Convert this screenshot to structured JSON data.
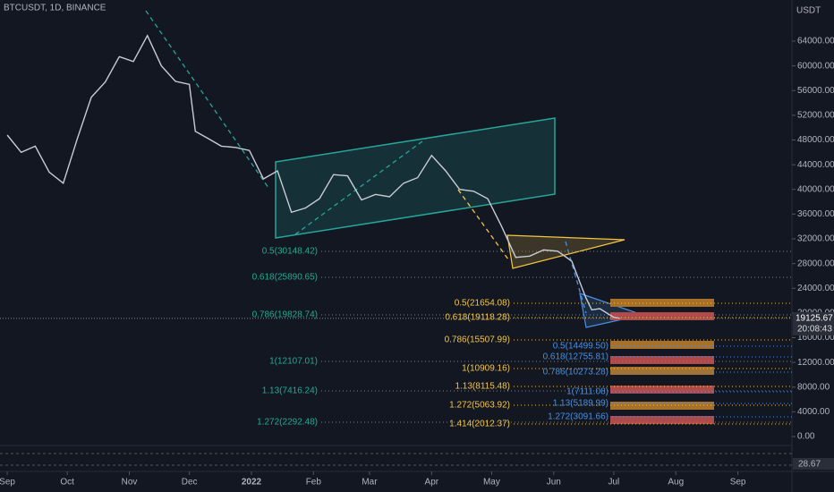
{
  "chart_data": {
    "type": "line",
    "title": "BTCUSDT, 1D, BINANCE",
    "unit": "USDT",
    "color": "#c9ccd4",
    "x": [
      0,
      7,
      14,
      21,
      28,
      35,
      42,
      49,
      56,
      63,
      70,
      77,
      84,
      91,
      94,
      100,
      107,
      114,
      121,
      128,
      135,
      142,
      149,
      156,
      163,
      170,
      177,
      184,
      191,
      198,
      205,
      212,
      219,
      226,
      233,
      240,
      247,
      254,
      261,
      268,
      275,
      282,
      289,
      292,
      296,
      303,
      306
    ],
    "values": [
      48800,
      46000,
      47000,
      42800,
      41000,
      48200,
      54900,
      57400,
      61500,
      60700,
      64900,
      60000,
      57500,
      57000,
      49400,
      48300,
      47000,
      46800,
      46300,
      41700,
      43000,
      36300,
      37000,
      38500,
      42400,
      42200,
      38300,
      39200,
      38800,
      41000,
      41900,
      45500,
      43000,
      40000,
      39700,
      38500,
      34000,
      29000,
      29200,
      30200,
      30000,
      28400,
      22500,
      20500,
      20700,
      19300,
      19125.67
    ],
    "xlim": [
      -3.6,
      392
    ],
    "ylim": [
      -1303,
      70660
    ],
    "xticks": [
      {
        "value": 0,
        "label": "Sep"
      },
      {
        "value": 30,
        "label": "Oct"
      },
      {
        "value": 61,
        "label": "Nov"
      },
      {
        "value": 91,
        "label": "Dec"
      },
      {
        "value": 122,
        "label": "2022"
      },
      {
        "value": 153,
        "label": "Feb"
      },
      {
        "value": 181,
        "label": "Mar"
      },
      {
        "value": 212,
        "label": "Apr"
      },
      {
        "value": 242,
        "label": "May"
      },
      {
        "value": 273,
        "label": "Jun"
      },
      {
        "value": 303,
        "label": "Jul"
      },
      {
        "value": 334,
        "label": "Aug"
      },
      {
        "value": 365,
        "label": "Sep"
      }
    ],
    "yticks": [
      {
        "value": 0,
        "label": "0.00"
      },
      {
        "value": 4000,
        "label": "4000.00"
      },
      {
        "value": 8000,
        "label": "8000.00"
      },
      {
        "value": 12000,
        "label": "12000.00"
      },
      {
        "value": 16000,
        "label": "16000.00"
      },
      {
        "value": 20000,
        "label": "20000.00"
      },
      {
        "value": 24000,
        "label": "24000.00"
      },
      {
        "value": 28000,
        "label": "28000.00"
      },
      {
        "value": 32000,
        "label": "32000.00"
      },
      {
        "value": 36000,
        "label": "36000.00"
      },
      {
        "value": 40000,
        "label": "40000.00"
      },
      {
        "value": 44000,
        "label": "44000.00"
      },
      {
        "value": 48000,
        "label": "48000.00"
      },
      {
        "value": 52000,
        "label": "52000.00"
      },
      {
        "value": 56000,
        "label": "56000.00"
      },
      {
        "value": 60000,
        "label": "60000.00"
      },
      {
        "value": 64000,
        "label": "64000.00"
      }
    ],
    "last_price": 19125.67,
    "countdown": "20:08:43",
    "indicator_value": 28.67,
    "annotations": [
      {
        "text": "0.5(30148.42)",
        "color": "#22ab94"
      },
      {
        "text": "0.618(25890.65)",
        "color": "#22ab94"
      },
      {
        "text": "0.786(19828.74)",
        "color": "#22ab94"
      },
      {
        "text": "1(12107.01)",
        "color": "#22ab94"
      },
      {
        "text": "1.13(7416.24)",
        "color": "#22ab94"
      },
      {
        "text": "1.272(2292.48)",
        "color": "#22ab94"
      },
      {
        "text": "0.5(21654.08)",
        "color": "#f5c542"
      },
      {
        "text": "0.618(19118.28)",
        "color": "#f5c542"
      },
      {
        "text": "0.786(15507.99)",
        "color": "#f5c542"
      },
      {
        "text": "1(10909.16)",
        "color": "#f5c542"
      },
      {
        "text": "1.13(8115.48)",
        "color": "#f5c542"
      },
      {
        "text": "1.272(5063.92)",
        "color": "#f5c542"
      },
      {
        "text": "1.414(2012.37)",
        "color": "#f5c542"
      },
      {
        "text": "0.5(14499.50)",
        "color": "#4a8fe0"
      },
      {
        "text": "0.618(12755.81)",
        "color": "#4a8fe0"
      },
      {
        "text": "0.786(10273.28)",
        "color": "#4a8fe0"
      },
      {
        "text": "1(7111.08)",
        "color": "#4a8fe0"
      },
      {
        "text": "1.13(5189.99)",
        "color": "#4a8fe0"
      },
      {
        "text": "1.272(3091.66)",
        "color": "#4a8fe0"
      }
    ]
  }
}
